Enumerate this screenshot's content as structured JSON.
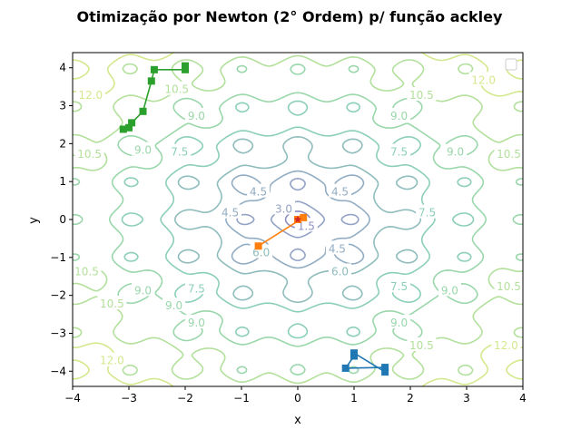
{
  "chart_data": {
    "type": "line",
    "title": "Otimização por Newton (2° Ordem) p/ função ackley",
    "xlabel": "x",
    "ylabel": "y",
    "xlim": [
      -4,
      4
    ],
    "ylim": [
      -4.4,
      4.4
    ],
    "xticks": [
      "−4",
      "−3",
      "−2",
      "−1",
      "0",
      "1",
      "2",
      "3",
      "4"
    ],
    "yticks": [
      "−4",
      "−3",
      "−2",
      "−1",
      "0",
      "1",
      "2",
      "3",
      "4"
    ],
    "legend": "top-right (empty)",
    "grid": false,
    "contour_levels": [
      "1.5",
      "3.0",
      "4.5",
      "6.0",
      "7.5",
      "9.0",
      "10.5",
      "12.0"
    ],
    "contour_labels": [
      {
        "text": "12.0",
        "x": -3.68,
        "y": 3.3
      },
      {
        "text": "10.5",
        "x": -2.15,
        "y": 3.45
      },
      {
        "text": "9.0",
        "x": -1.8,
        "y": 2.75
      },
      {
        "text": "9.0",
        "x": -2.75,
        "y": 1.85
      },
      {
        "text": "10.5",
        "x": -3.7,
        "y": 1.75
      },
      {
        "text": "7.5",
        "x": -2.1,
        "y": 1.8
      },
      {
        "text": "4.5",
        "x": -1.2,
        "y": 0.2
      },
      {
        "text": "4.5",
        "x": -0.7,
        "y": 0.75
      },
      {
        "text": "3.0",
        "x": -0.25,
        "y": 0.3
      },
      {
        "text": "1.5",
        "x": 0.15,
        "y": -0.15
      },
      {
        "text": "4.5",
        "x": 0.75,
        "y": 0.75
      },
      {
        "text": "4.5",
        "x": 0.7,
        "y": -0.75
      },
      {
        "text": "6.0",
        "x": 0.75,
        "y": -1.35
      },
      {
        "text": "6.0",
        "x": -0.65,
        "y": -0.85
      },
      {
        "text": "7.5",
        "x": 1.8,
        "y": 1.8
      },
      {
        "text": "7.5",
        "x": 2.3,
        "y": 0.2
      },
      {
        "text": "7.5",
        "x": 1.8,
        "y": -1.75
      },
      {
        "text": "7.5",
        "x": -1.8,
        "y": -1.8
      },
      {
        "text": "9.0",
        "x": 1.8,
        "y": 2.75
      },
      {
        "text": "9.0",
        "x": 2.8,
        "y": 1.8
      },
      {
        "text": "9.0",
        "x": 2.7,
        "y": -1.85
      },
      {
        "text": "9.0",
        "x": 1.8,
        "y": -2.7
      },
      {
        "text": "9.0",
        "x": -2.75,
        "y": -1.85
      },
      {
        "text": "9.0",
        "x": -2.2,
        "y": -2.25
      },
      {
        "text": "9.0",
        "x": -1.8,
        "y": -2.7
      },
      {
        "text": "10.5",
        "x": 2.2,
        "y": 3.3
      },
      {
        "text": "10.5",
        "x": 3.75,
        "y": 1.75
      },
      {
        "text": "10.5",
        "x": 3.75,
        "y": -1.75
      },
      {
        "text": "10.5",
        "x": 2.2,
        "y": -3.3
      },
      {
        "text": "10.5",
        "x": -3.75,
        "y": -1.35
      },
      {
        "text": "10.5",
        "x": -3.3,
        "y": -2.2
      },
      {
        "text": "12.0",
        "x": 3.3,
        "y": 3.7
      },
      {
        "text": "12.0",
        "x": 3.7,
        "y": -3.3
      },
      {
        "text": "12.0",
        "x": -3.3,
        "y": -3.7
      }
    ],
    "series": [
      {
        "color": "#1f77b4",
        "marker": "square",
        "x": [
          1.55,
          0.85,
          1.0,
          1.0,
          1.55
        ],
        "y": [
          -3.9,
          -3.92,
          -3.6,
          -3.52,
          -4.02
        ]
      },
      {
        "color": "#ff7f0e",
        "marker": "square",
        "x": [
          -0.7,
          0.1,
          0.0,
          0.0
        ],
        "y": [
          -0.7,
          0.05,
          0.0,
          0.0
        ]
      },
      {
        "color": "#2ca02c",
        "marker": "square",
        "x": [
          -2.0,
          -2.0,
          -2.55,
          -2.6,
          -2.75,
          -2.95,
          -3.0,
          -3.1
        ],
        "y": [
          4.05,
          3.95,
          3.95,
          3.65,
          2.85,
          2.55,
          2.42,
          2.38
        ]
      }
    ]
  }
}
